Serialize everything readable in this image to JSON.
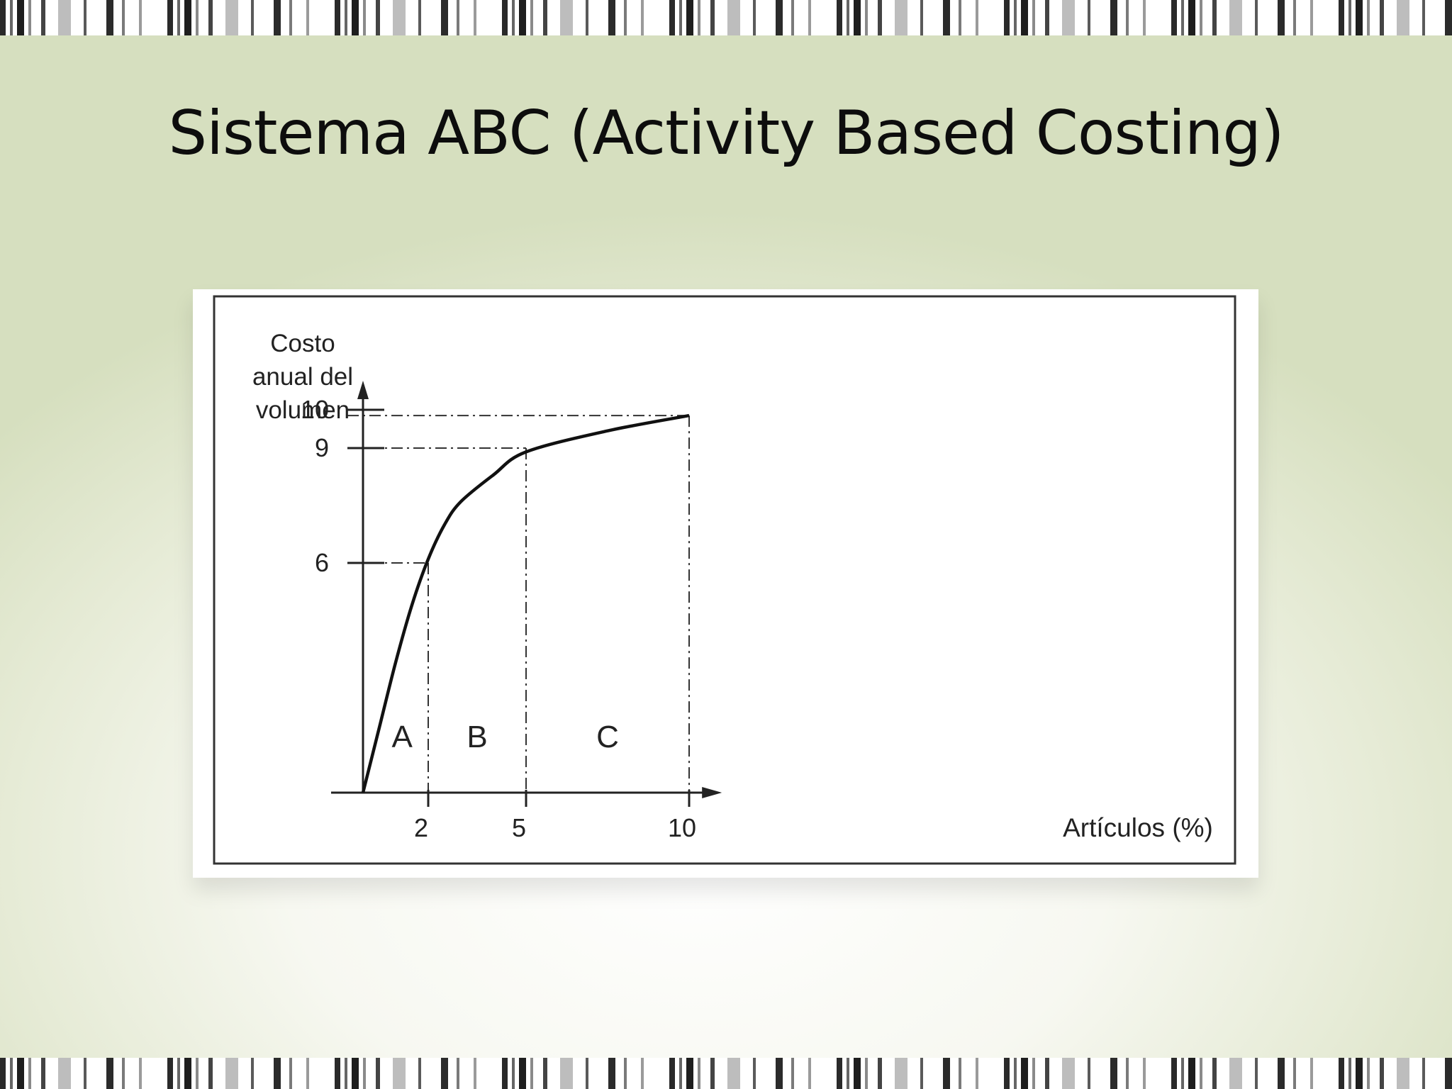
{
  "slide": {
    "title": "Sistema ABC (Activity Based Costing)"
  },
  "chart_data": {
    "type": "line",
    "title": "",
    "ylabel_lines": [
      "Costo",
      "anual del",
      "volumen"
    ],
    "xlabel": "Artículos (%)",
    "x_ticks": [
      {
        "value": 2,
        "label": "2"
      },
      {
        "value": 5,
        "label": "5"
      },
      {
        "value": 10,
        "label": "10"
      }
    ],
    "y_ticks": [
      {
        "value": 6,
        "label": "6"
      },
      {
        "value": 9,
        "label": "9"
      },
      {
        "value": 10,
        "label": "10"
      }
    ],
    "xlim": [
      0,
      10.7
    ],
    "ylim": [
      0,
      10.5
    ],
    "series": [
      {
        "points": [
          [
            0,
            0
          ],
          [
            0.5,
            1.7
          ],
          [
            1,
            3.4
          ],
          [
            1.5,
            4.9
          ],
          [
            2,
            6.1
          ],
          [
            2.5,
            7.0
          ],
          [
            3,
            7.6
          ],
          [
            4,
            8.3
          ],
          [
            5,
            8.9
          ],
          [
            7.5,
            9.45
          ],
          [
            10,
            9.85
          ]
        ]
      }
    ],
    "zones": [
      {
        "label": "A",
        "x": 1.2
      },
      {
        "label": "B",
        "x": 3.5
      },
      {
        "label": "C",
        "x": 7.5
      }
    ],
    "guides": [
      {
        "x": 2,
        "y": 6
      },
      {
        "x": 5,
        "y": 9
      },
      {
        "x": 10,
        "y": 9.85
      }
    ],
    "grid": false,
    "legend": "none"
  }
}
